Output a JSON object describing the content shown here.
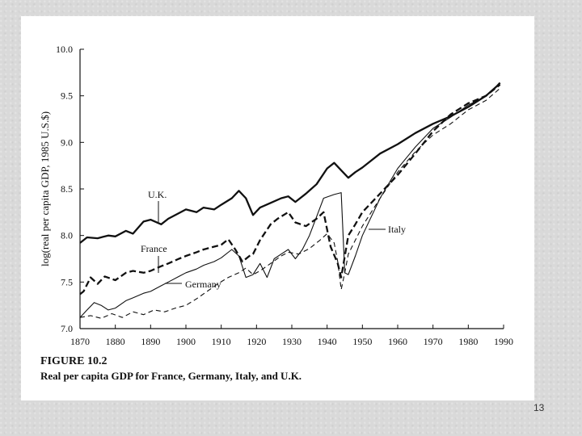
{
  "page_number": "13",
  "chart_data": {
    "type": "line",
    "title": "FIGURE 10.2",
    "subtitle": "Real per capita GDP for France, Germany, Italy, and U.K.",
    "xlabel": "",
    "ylabel": "log(real per capita GDP, 1985 U.S.$)",
    "xlim": [
      1870,
      1990
    ],
    "ylim": [
      7.0,
      10.0
    ],
    "x_ticks": [
      "1870",
      "1880",
      "1890",
      "1900",
      "1910",
      "1920",
      "1930",
      "1940",
      "1950",
      "1960",
      "1970",
      "1980",
      "1990"
    ],
    "y_ticks": [
      "7.0",
      "7.5",
      "8.0",
      "8.5",
      "9.0",
      "9.5",
      "10.0"
    ],
    "grid": false,
    "legend": "inline annotations",
    "series": [
      {
        "name": "U.K.",
        "style": "solid-thick",
        "points": [
          [
            1870,
            7.92
          ],
          [
            1872,
            7.98
          ],
          [
            1875,
            7.97
          ],
          [
            1878,
            8.0
          ],
          [
            1880,
            7.99
          ],
          [
            1883,
            8.05
          ],
          [
            1885,
            8.02
          ],
          [
            1888,
            8.15
          ],
          [
            1890,
            8.17
          ],
          [
            1893,
            8.12
          ],
          [
            1895,
            8.18
          ],
          [
            1898,
            8.24
          ],
          [
            1900,
            8.28
          ],
          [
            1903,
            8.25
          ],
          [
            1905,
            8.3
          ],
          [
            1908,
            8.28
          ],
          [
            1910,
            8.33
          ],
          [
            1913,
            8.4
          ],
          [
            1915,
            8.48
          ],
          [
            1917,
            8.4
          ],
          [
            1919,
            8.22
          ],
          [
            1921,
            8.3
          ],
          [
            1924,
            8.35
          ],
          [
            1927,
            8.4
          ],
          [
            1929,
            8.42
          ],
          [
            1931,
            8.36
          ],
          [
            1934,
            8.45
          ],
          [
            1937,
            8.55
          ],
          [
            1940,
            8.72
          ],
          [
            1942,
            8.78
          ],
          [
            1944,
            8.7
          ],
          [
            1946,
            8.62
          ],
          [
            1948,
            8.68
          ],
          [
            1950,
            8.73
          ],
          [
            1955,
            8.88
          ],
          [
            1960,
            8.98
          ],
          [
            1965,
            9.1
          ],
          [
            1970,
            9.2
          ],
          [
            1975,
            9.28
          ],
          [
            1980,
            9.38
          ],
          [
            1985,
            9.5
          ],
          [
            1988,
            9.6
          ],
          [
            1989,
            9.64
          ]
        ]
      },
      {
        "name": "France",
        "style": "dashed-thick",
        "points": [
          [
            1870,
            7.37
          ],
          [
            1871,
            7.4
          ],
          [
            1873,
            7.55
          ],
          [
            1875,
            7.48
          ],
          [
            1877,
            7.56
          ],
          [
            1880,
            7.52
          ],
          [
            1883,
            7.6
          ],
          [
            1885,
            7.62
          ],
          [
            1888,
            7.6
          ],
          [
            1890,
            7.62
          ],
          [
            1893,
            7.67
          ],
          [
            1895,
            7.7
          ],
          [
            1898,
            7.75
          ],
          [
            1900,
            7.78
          ],
          [
            1903,
            7.82
          ],
          [
            1905,
            7.85
          ],
          [
            1908,
            7.88
          ],
          [
            1910,
            7.9
          ],
          [
            1912,
            7.96
          ],
          [
            1914,
            7.85
          ],
          [
            1916,
            7.72
          ],
          [
            1918,
            7.78
          ],
          [
            1919,
            7.8
          ],
          [
            1921,
            7.95
          ],
          [
            1924,
            8.12
          ],
          [
            1926,
            8.18
          ],
          [
            1929,
            8.25
          ],
          [
            1931,
            8.14
          ],
          [
            1934,
            8.1
          ],
          [
            1937,
            8.18
          ],
          [
            1939,
            8.25
          ],
          [
            1941,
            7.88
          ],
          [
            1943,
            7.7
          ],
          [
            1944,
            7.55
          ],
          [
            1946,
            8.0
          ],
          [
            1948,
            8.12
          ],
          [
            1950,
            8.25
          ],
          [
            1955,
            8.45
          ],
          [
            1960,
            8.65
          ],
          [
            1965,
            8.88
          ],
          [
            1970,
            9.12
          ],
          [
            1975,
            9.3
          ],
          [
            1980,
            9.42
          ],
          [
            1985,
            9.5
          ],
          [
            1989,
            9.62
          ]
        ]
      },
      {
        "name": "Germany",
        "style": "solid-thin",
        "points": [
          [
            1870,
            7.12
          ],
          [
            1872,
            7.2
          ],
          [
            1874,
            7.28
          ],
          [
            1876,
            7.25
          ],
          [
            1878,
            7.2
          ],
          [
            1880,
            7.22
          ],
          [
            1883,
            7.3
          ],
          [
            1885,
            7.33
          ],
          [
            1888,
            7.38
          ],
          [
            1890,
            7.4
          ],
          [
            1893,
            7.46
          ],
          [
            1895,
            7.5
          ],
          [
            1898,
            7.56
          ],
          [
            1900,
            7.6
          ],
          [
            1903,
            7.64
          ],
          [
            1905,
            7.68
          ],
          [
            1908,
            7.72
          ],
          [
            1910,
            7.76
          ],
          [
            1913,
            7.85
          ],
          [
            1915,
            7.78
          ],
          [
            1917,
            7.55
          ],
          [
            1919,
            7.58
          ],
          [
            1921,
            7.7
          ],
          [
            1923,
            7.55
          ],
          [
            1925,
            7.75
          ],
          [
            1927,
            7.8
          ],
          [
            1929,
            7.85
          ],
          [
            1931,
            7.75
          ],
          [
            1933,
            7.85
          ],
          [
            1935,
            8.0
          ],
          [
            1937,
            8.2
          ],
          [
            1939,
            8.4
          ],
          [
            1942,
            8.44
          ],
          [
            1944,
            8.46
          ],
          [
            1945,
            7.6
          ],
          [
            1946,
            7.58
          ],
          [
            1948,
            7.78
          ],
          [
            1950,
            8.0
          ],
          [
            1955,
            8.4
          ],
          [
            1960,
            8.72
          ],
          [
            1965,
            8.95
          ],
          [
            1970,
            9.15
          ],
          [
            1975,
            9.27
          ],
          [
            1980,
            9.4
          ],
          [
            1985,
            9.5
          ],
          [
            1989,
            9.63
          ]
        ]
      },
      {
        "name": "Italy",
        "style": "dashed-thin",
        "points": [
          [
            1870,
            7.12
          ],
          [
            1873,
            7.14
          ],
          [
            1876,
            7.11
          ],
          [
            1879,
            7.16
          ],
          [
            1882,
            7.12
          ],
          [
            1885,
            7.18
          ],
          [
            1888,
            7.15
          ],
          [
            1891,
            7.2
          ],
          [
            1894,
            7.18
          ],
          [
            1897,
            7.22
          ],
          [
            1900,
            7.25
          ],
          [
            1903,
            7.32
          ],
          [
            1906,
            7.4
          ],
          [
            1909,
            7.48
          ],
          [
            1912,
            7.55
          ],
          [
            1915,
            7.6
          ],
          [
            1917,
            7.65
          ],
          [
            1919,
            7.58
          ],
          [
            1921,
            7.62
          ],
          [
            1924,
            7.7
          ],
          [
            1927,
            7.78
          ],
          [
            1929,
            7.82
          ],
          [
            1932,
            7.8
          ],
          [
            1935,
            7.86
          ],
          [
            1938,
            7.95
          ],
          [
            1940,
            8.02
          ],
          [
            1942,
            7.92
          ],
          [
            1943,
            7.72
          ],
          [
            1944,
            7.42
          ],
          [
            1945,
            7.6
          ],
          [
            1946,
            7.8
          ],
          [
            1948,
            7.95
          ],
          [
            1950,
            8.1
          ],
          [
            1955,
            8.4
          ],
          [
            1960,
            8.68
          ],
          [
            1965,
            8.9
          ],
          [
            1970,
            9.08
          ],
          [
            1975,
            9.2
          ],
          [
            1980,
            9.35
          ],
          [
            1985,
            9.45
          ],
          [
            1989,
            9.58
          ]
        ]
      }
    ],
    "annotations": [
      {
        "text": "U.K.",
        "series": "U.K."
      },
      {
        "text": "France",
        "series": "France"
      },
      {
        "text": "Germany",
        "series": "Germany"
      },
      {
        "text": "Italy",
        "series": "Italy"
      }
    ]
  }
}
